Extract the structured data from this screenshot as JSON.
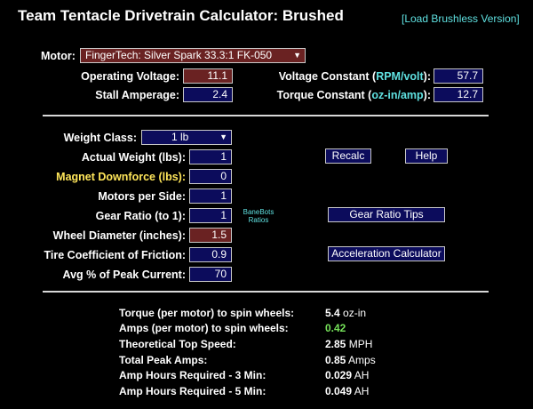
{
  "header": {
    "title": "Team Tentacle Drivetrain Calculator: Brushed",
    "brushless_link": "[Load Brushless Version]"
  },
  "motor": {
    "label": "Motor:",
    "selected": "FingerTech: Silver Spark 33.3:1 FK-050"
  },
  "motor_specs": {
    "operating_voltage": {
      "label": "Operating Voltage:",
      "value": "11.1"
    },
    "stall_amperage": {
      "label": "Stall Amperage:",
      "value": "2.4"
    },
    "voltage_constant": {
      "label_pre": "Voltage Constant (",
      "label_unit": "RPM/volt",
      "label_post": "):",
      "value": "57.7"
    },
    "torque_constant": {
      "label_pre": "Torque Constant (",
      "label_unit": "oz-in/amp",
      "label_post": "):",
      "value": "12.7"
    }
  },
  "inputs": {
    "weight_class": {
      "label": "Weight Class:",
      "selected": "1 lb"
    },
    "actual_weight": {
      "label": "Actual Weight (lbs):",
      "value": "1"
    },
    "magnet_downforce": {
      "label": "Magnet Downforce (lbs):",
      "value": "0"
    },
    "motors_per_side": {
      "label": "Motors per Side:",
      "value": "1"
    },
    "gear_ratio": {
      "label": "Gear Ratio (to 1):",
      "value": "1"
    },
    "wheel_diameter": {
      "label": "Wheel Diameter (inches):",
      "value": "1.5"
    },
    "tire_friction": {
      "label": "Tire Coefficient of Friction:",
      "value": "0.9"
    },
    "avg_peak_current": {
      "label": "Avg % of Peak Current:",
      "value": "70"
    }
  },
  "buttons": {
    "recalc": "Recalc",
    "help": "Help",
    "gear_ratio_tips": "Gear Ratio Tips",
    "acceleration_calculator": "Acceleration Calculator"
  },
  "banebots_link": {
    "line1": "BaneBots",
    "line2": "Ratios"
  },
  "results": {
    "torque": {
      "label": "Torque (per motor) to spin wheels:",
      "value": "5.4",
      "unit": "oz-in"
    },
    "amps": {
      "label": "Amps (per motor) to spin wheels:",
      "value": "0.42",
      "unit": ""
    },
    "top_speed": {
      "label": "Theoretical Top Speed:",
      "value": "2.85",
      "unit": "MPH"
    },
    "peak_amps": {
      "label": "Total Peak Amps:",
      "value": "0.85",
      "unit": "Amps"
    },
    "ah_3min": {
      "label": "Amp Hours Required - 3 Min:",
      "value": "0.029",
      "unit": "AH"
    },
    "ah_5min": {
      "label": "Amp Hours Required - 5 Min:",
      "value": "0.049",
      "unit": "AH"
    }
  },
  "colors": {
    "background": "#000000",
    "field_navy": "#0c0c5c",
    "field_maroon": "#6a2222",
    "link_cyan": "#5fe1e1",
    "label_yellow": "#ffe65a",
    "value_green": "#76e25a"
  }
}
